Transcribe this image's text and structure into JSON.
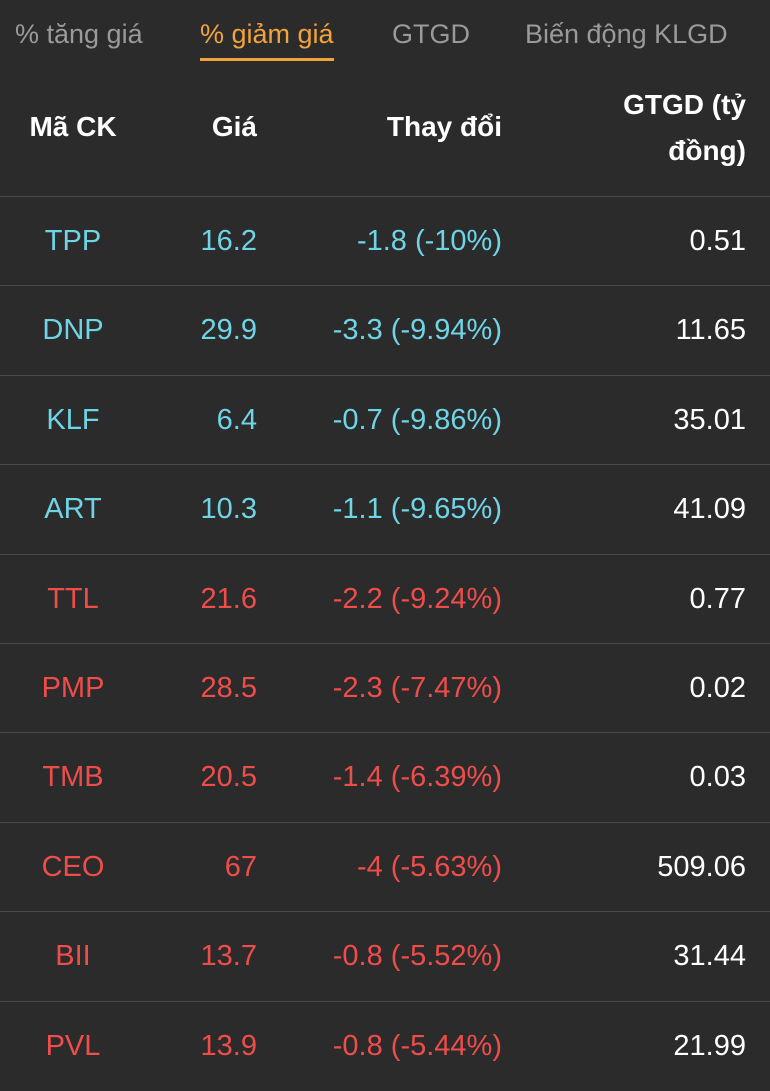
{
  "tabs": [
    {
      "label": "% tăng giá",
      "active": false
    },
    {
      "label": "% giảm giá",
      "active": true
    },
    {
      "label": "GTGD",
      "active": false
    },
    {
      "label": "Biến động KLGD",
      "active": false
    }
  ],
  "colors": {
    "active_tab": "#f2a33a",
    "floor": "#6fd5e6",
    "down": "#ef4d4a",
    "background": "#2b2b2c"
  },
  "header": {
    "symbol": "Mã CK",
    "price": "Giá",
    "change": "Thay đổi",
    "value": "GTGD (tỷ đồng)"
  },
  "rows": [
    {
      "symbol": "TPP",
      "price": "16.2",
      "change": "-1.8 (-10%)",
      "value": "0.51",
      "status": "floor"
    },
    {
      "symbol": "DNP",
      "price": "29.9",
      "change": "-3.3 (-9.94%)",
      "value": "11.65",
      "status": "floor"
    },
    {
      "symbol": "KLF",
      "price": "6.4",
      "change": "-0.7 (-9.86%)",
      "value": "35.01",
      "status": "floor"
    },
    {
      "symbol": "ART",
      "price": "10.3",
      "change": "-1.1 (-9.65%)",
      "value": "41.09",
      "status": "floor"
    },
    {
      "symbol": "TTL",
      "price": "21.6",
      "change": "-2.2 (-9.24%)",
      "value": "0.77",
      "status": "down"
    },
    {
      "symbol": "PMP",
      "price": "28.5",
      "change": "-2.3 (-7.47%)",
      "value": "0.02",
      "status": "down"
    },
    {
      "symbol": "TMB",
      "price": "20.5",
      "change": "-1.4 (-6.39%)",
      "value": "0.03",
      "status": "down"
    },
    {
      "symbol": "CEO",
      "price": "67",
      "change": "-4 (-5.63%)",
      "value": "509.06",
      "status": "down"
    },
    {
      "symbol": "BII",
      "price": "13.7",
      "change": "-0.8 (-5.52%)",
      "value": "31.44",
      "status": "down"
    },
    {
      "symbol": "PVL",
      "price": "13.9",
      "change": "-0.8 (-5.44%)",
      "value": "21.99",
      "status": "down"
    }
  ]
}
